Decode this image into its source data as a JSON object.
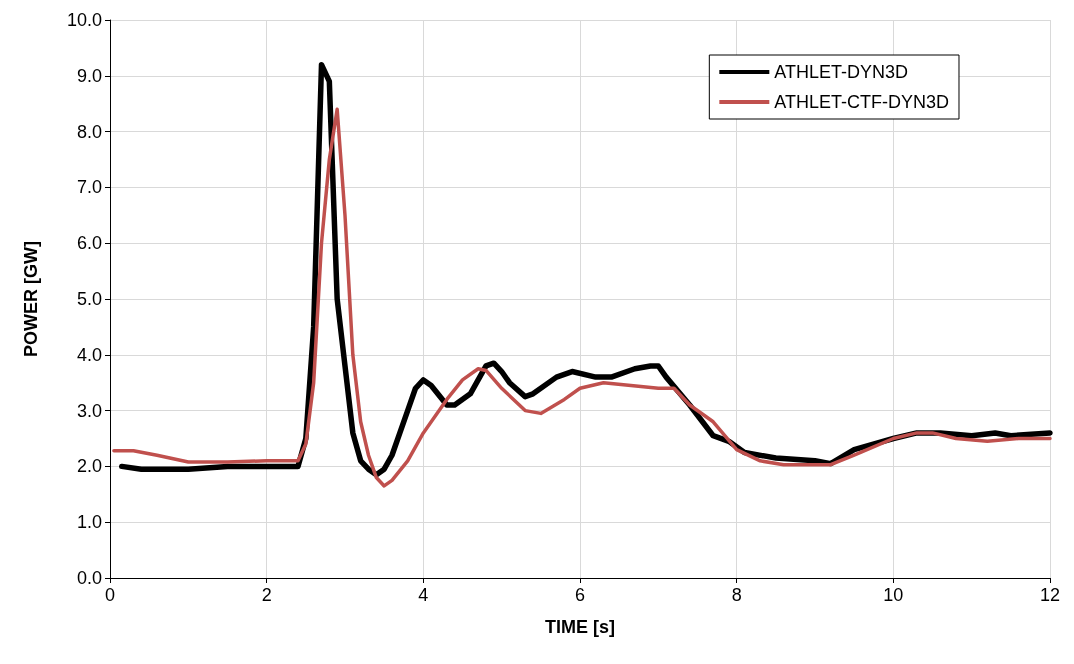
{
  "chart_data": {
    "type": "line",
    "xlabel": "TIME [s]",
    "ylabel": "POWER [GW]",
    "xlim": [
      0,
      12
    ],
    "xticks": [
      0,
      2,
      4,
      6,
      8,
      10,
      12
    ],
    "ylim": [
      0,
      10
    ],
    "yticks": [
      {
        "value": 0,
        "label": "0.0"
      },
      {
        "value": 1,
        "label": "1.0"
      },
      {
        "value": 2,
        "label": "2.0"
      },
      {
        "value": 3,
        "label": "3.0"
      },
      {
        "value": 4,
        "label": "4.0"
      },
      {
        "value": 5,
        "label": "5.0"
      },
      {
        "value": 6,
        "label": "6.0"
      },
      {
        "value": 7,
        "label": "7.0"
      },
      {
        "value": 8,
        "label": "8.0"
      },
      {
        "value": 9,
        "label": "9.0"
      },
      {
        "value": 10,
        "label": "10.0"
      }
    ],
    "grid": true,
    "legend": "top right",
    "marker": "none",
    "line_style": "solid",
    "series": [
      {
        "name": "ATHLET-DYN3D",
        "color": "#000000",
        "x": [
          0.15,
          0.4,
          1.0,
          1.5,
          2.0,
          2.4,
          2.5,
          2.6,
          2.7,
          2.8,
          2.9,
          3.0,
          3.1,
          3.2,
          3.3,
          3.4,
          3.5,
          3.6,
          3.8,
          3.9,
          4.0,
          4.1,
          4.3,
          4.4,
          4.6,
          4.8,
          4.9,
          5.0,
          5.1,
          5.3,
          5.4,
          5.7,
          5.9,
          6.2,
          6.4,
          6.7,
          6.9,
          7.0,
          7.1,
          7.4,
          7.7,
          7.9,
          8.1,
          8.5,
          9.0,
          9.2,
          9.5,
          10.0,
          10.3,
          10.6,
          11.0,
          11.3,
          11.5,
          12.0
        ],
        "values": [
          2.0,
          1.95,
          1.95,
          2.0,
          2.0,
          2.0,
          2.5,
          4.5,
          9.2,
          8.9,
          5.0,
          3.8,
          2.6,
          2.1,
          1.95,
          1.85,
          1.95,
          2.2,
          3.0,
          3.4,
          3.55,
          3.45,
          3.1,
          3.1,
          3.3,
          3.8,
          3.85,
          3.7,
          3.5,
          3.25,
          3.3,
          3.6,
          3.7,
          3.6,
          3.6,
          3.75,
          3.8,
          3.8,
          3.6,
          3.1,
          2.55,
          2.45,
          2.25,
          2.15,
          2.1,
          2.05,
          2.3,
          2.5,
          2.6,
          2.6,
          2.55,
          2.6,
          2.55,
          2.6
        ]
      },
      {
        "name": "ATHLET-CTF-DYN3D",
        "color": "#c0504d",
        "x": [
          0.05,
          0.3,
          0.6,
          1.0,
          1.5,
          2.0,
          2.4,
          2.5,
          2.6,
          2.7,
          2.8,
          2.9,
          3.0,
          3.1,
          3.2,
          3.3,
          3.4,
          3.5,
          3.6,
          3.8,
          4.0,
          4.3,
          4.5,
          4.7,
          4.8,
          5.0,
          5.3,
          5.5,
          5.8,
          6.0,
          6.3,
          7.0,
          7.2,
          7.4,
          7.7,
          8.0,
          8.3,
          8.6,
          9.2,
          9.5,
          10.0,
          10.3,
          10.5,
          10.8,
          11.2,
          11.6,
          12.0
        ],
        "values": [
          2.28,
          2.28,
          2.2,
          2.08,
          2.08,
          2.1,
          2.1,
          2.4,
          3.5,
          6.0,
          7.5,
          8.4,
          6.5,
          4.0,
          2.8,
          2.2,
          1.8,
          1.65,
          1.75,
          2.1,
          2.6,
          3.2,
          3.55,
          3.75,
          3.72,
          3.4,
          3.0,
          2.95,
          3.2,
          3.4,
          3.5,
          3.4,
          3.4,
          3.1,
          2.8,
          2.3,
          2.1,
          2.03,
          2.03,
          2.2,
          2.5,
          2.6,
          2.6,
          2.5,
          2.45,
          2.5,
          2.5
        ]
      }
    ]
  }
}
